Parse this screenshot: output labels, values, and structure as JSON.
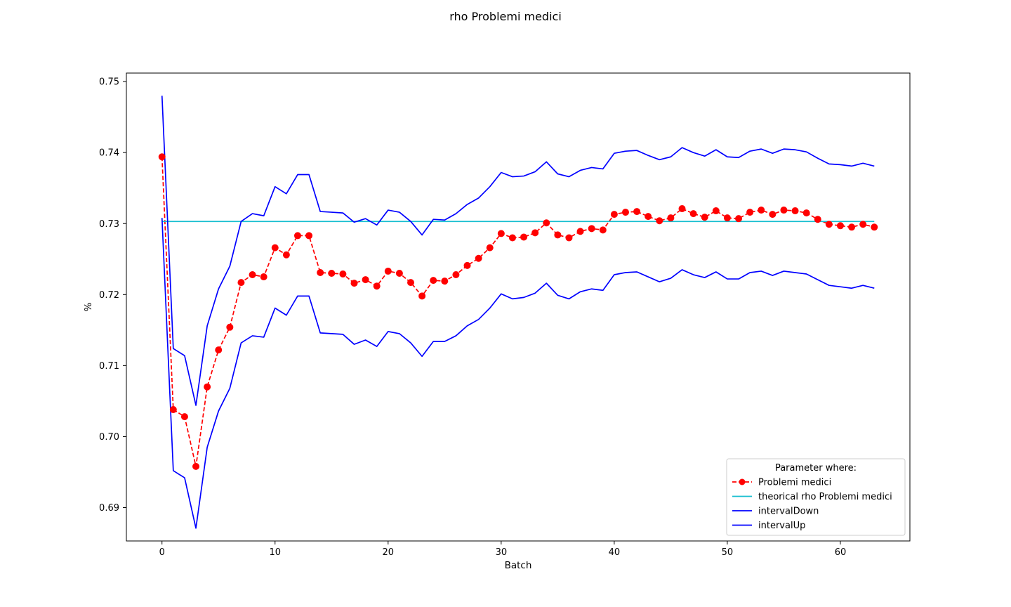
{
  "chart_data": {
    "type": "line",
    "title": "rho Problemi medici",
    "xlabel": "Batch",
    "ylabel": "%",
    "xlim": [
      -3.15,
      66.15
    ],
    "ylim": [
      0.6853,
      0.7512
    ],
    "x_ticks": [
      0,
      10,
      20,
      30,
      40,
      50,
      60
    ],
    "y_ticks": [
      0.69,
      0.7,
      0.71,
      0.72,
      0.73,
      0.74,
      0.75
    ],
    "y_tick_labels": [
      "0.69",
      "0.70",
      "0.71",
      "0.72",
      "0.73",
      "0.74",
      "0.75"
    ],
    "grid": false,
    "legend": {
      "title": "Parameter where:",
      "position": "lower right"
    },
    "series": [
      {
        "name": "Problemi medici",
        "color": "#ff0000",
        "style": "dashed-markers",
        "x": [
          0,
          1,
          2,
          3,
          4,
          5,
          6,
          7,
          8,
          9,
          10,
          11,
          12,
          13,
          14,
          15,
          16,
          17,
          18,
          19,
          20,
          21,
          22,
          23,
          24,
          25,
          26,
          27,
          28,
          29,
          30,
          31,
          32,
          33,
          34,
          35,
          36,
          37,
          38,
          39,
          40,
          41,
          42,
          43,
          44,
          45,
          46,
          47,
          48,
          49,
          50,
          51,
          52,
          53,
          54,
          55,
          56,
          57,
          58,
          59,
          60,
          61,
          62,
          63
        ],
        "values": [
          0.7394,
          0.7038,
          0.7028,
          0.6958,
          0.707,
          0.7122,
          0.7154,
          0.7217,
          0.7228,
          0.7225,
          0.7266,
          0.7256,
          0.7283,
          0.7283,
          0.7231,
          0.723,
          0.7229,
          0.7216,
          0.7221,
          0.7212,
          0.7233,
          0.723,
          0.7217,
          0.7198,
          0.722,
          0.7219,
          0.7228,
          0.7241,
          0.7251,
          0.7266,
          0.7286,
          0.728,
          0.7281,
          0.7287,
          0.7301,
          0.7284,
          0.728,
          0.7289,
          0.7293,
          0.7291,
          0.7313,
          0.7316,
          0.7317,
          0.731,
          0.7304,
          0.7308,
          0.7321,
          0.7314,
          0.7309,
          0.7318,
          0.7308,
          0.7307,
          0.7316,
          0.7319,
          0.7313,
          0.7319,
          0.7318,
          0.7315,
          0.7306,
          0.7299,
          0.7297,
          0.7295,
          0.7299,
          0.7295
        ]
      },
      {
        "name": "theorical rho Problemi medici",
        "color": "#17becf",
        "style": "solid",
        "x": [
          0,
          63
        ],
        "values": [
          0.7303,
          0.7303
        ]
      },
      {
        "name": "intervalDown",
        "color": "#0000ff",
        "style": "solid",
        "x": [
          0,
          1,
          2,
          3,
          4,
          5,
          6,
          7,
          8,
          9,
          10,
          11,
          12,
          13,
          14,
          15,
          16,
          17,
          18,
          19,
          20,
          21,
          22,
          23,
          24,
          25,
          26,
          27,
          28,
          29,
          30,
          31,
          32,
          33,
          34,
          35,
          36,
          37,
          38,
          39,
          40,
          41,
          42,
          43,
          44,
          45,
          46,
          47,
          48,
          49,
          50,
          51,
          52,
          53,
          54,
          55,
          56,
          57,
          58,
          59,
          60,
          61,
          62,
          63
        ],
        "values": [
          0.7308,
          0.6952,
          0.6942,
          0.6871,
          0.6985,
          0.7036,
          0.7068,
          0.7132,
          0.7142,
          0.714,
          0.7181,
          0.7171,
          0.7198,
          0.7198,
          0.7146,
          0.7145,
          0.7144,
          0.713,
          0.7136,
          0.7127,
          0.7148,
          0.7145,
          0.7132,
          0.7113,
          0.7134,
          0.7134,
          0.7142,
          0.7156,
          0.7165,
          0.7181,
          0.7201,
          0.7194,
          0.7196,
          0.7202,
          0.7216,
          0.7199,
          0.7194,
          0.7204,
          0.7208,
          0.7206,
          0.7228,
          0.7231,
          0.7232,
          0.7225,
          0.7218,
          0.7223,
          0.7235,
          0.7228,
          0.7224,
          0.7232,
          0.7222,
          0.7222,
          0.7231,
          0.7233,
          0.7227,
          0.7233,
          0.7231,
          0.7229,
          0.7221,
          0.7213,
          0.7211,
          0.7209,
          0.7213,
          0.7209
        ]
      },
      {
        "name": "intervalUp",
        "color": "#0000ff",
        "style": "solid",
        "x": [
          0,
          1,
          2,
          3,
          4,
          5,
          6,
          7,
          8,
          9,
          10,
          11,
          12,
          13,
          14,
          15,
          16,
          17,
          18,
          19,
          20,
          21,
          22,
          23,
          24,
          25,
          26,
          27,
          28,
          29,
          30,
          31,
          32,
          33,
          34,
          35,
          36,
          37,
          38,
          39,
          40,
          41,
          42,
          43,
          44,
          45,
          46,
          47,
          48,
          49,
          50,
          51,
          52,
          53,
          54,
          55,
          56,
          57,
          58,
          59,
          60,
          61,
          62,
          63
        ],
        "values": [
          0.748,
          0.7124,
          0.7114,
          0.7044,
          0.7156,
          0.7208,
          0.724,
          0.7303,
          0.7314,
          0.7311,
          0.7352,
          0.7342,
          0.7369,
          0.7369,
          0.7317,
          0.7316,
          0.7315,
          0.7302,
          0.7307,
          0.7298,
          0.7319,
          0.7316,
          0.7303,
          0.7284,
          0.7306,
          0.7305,
          0.7314,
          0.7327,
          0.7336,
          0.7352,
          0.7372,
          0.7366,
          0.7367,
          0.7373,
          0.7387,
          0.737,
          0.7366,
          0.7375,
          0.7379,
          0.7377,
          0.7399,
          0.7402,
          0.7403,
          0.7396,
          0.739,
          0.7394,
          0.7407,
          0.74,
          0.7395,
          0.7404,
          0.7394,
          0.7393,
          0.7402,
          0.7405,
          0.7399,
          0.7405,
          0.7404,
          0.7401,
          0.7392,
          0.7384,
          0.7383,
          0.7381,
          0.7385,
          0.7381
        ]
      }
    ]
  }
}
